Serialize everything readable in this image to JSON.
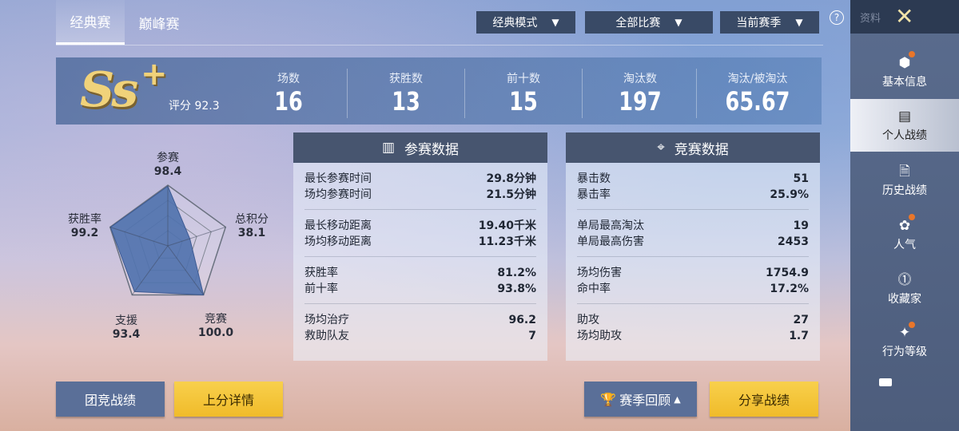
{
  "tabs": [
    {
      "label": "经典赛",
      "active": true
    },
    {
      "label": "巅峰赛",
      "active": false
    }
  ],
  "filters": [
    {
      "label": "经典模式"
    },
    {
      "label": "全部比赛"
    },
    {
      "label": "当前赛季"
    }
  ],
  "help_icon": "question-circle-icon",
  "sidebar": {
    "header": "资料",
    "close_icon": "close-x-icon",
    "items": [
      {
        "label": "基本信息",
        "icon": "profile-hex-icon",
        "badge": true
      },
      {
        "label": "个人战绩",
        "icon": "bar-chart-document-icon",
        "active": true
      },
      {
        "label": "历史战绩",
        "icon": "document-crosshair-icon"
      },
      {
        "label": "人气",
        "icon": "rose-hex-icon",
        "badge": true
      },
      {
        "label": "收藏家",
        "icon": "collector-medal-icon"
      },
      {
        "label": "行为等级",
        "icon": "winged-star-badge-icon",
        "badge": true
      }
    ],
    "more_icon": "menu-icon"
  },
  "summary": {
    "rank": "Ss",
    "rank_plus": "+",
    "score_label": "评分 92.3",
    "stats": [
      {
        "label": "场数",
        "value": "16"
      },
      {
        "label": "获胜数",
        "value": "13"
      },
      {
        "label": "前十数",
        "value": "15"
      },
      {
        "label": "淘汰数",
        "value": "197"
      },
      {
        "label": "淘汰/被淘汰",
        "value": "65.67"
      }
    ]
  },
  "radar": {
    "max": 100,
    "axes": [
      {
        "label": "参赛",
        "value": 98.4,
        "text": "98.4"
      },
      {
        "label": "总积分",
        "value": 38.1,
        "text": "38.1"
      },
      {
        "label": "竞赛",
        "value": 100.0,
        "text": "100.0"
      },
      {
        "label": "支援",
        "value": 93.4,
        "text": "93.4"
      },
      {
        "label": "获胜率",
        "value": 99.2,
        "text": "99.2"
      }
    ],
    "fill_color": "#4f71ad"
  },
  "participation": {
    "title": "参赛数据",
    "icon": "bar-chart-icon",
    "groups": [
      [
        {
          "label": "最长参赛时间",
          "value": "29.8分钟"
        },
        {
          "label": "场均参赛时间",
          "value": "21.5分钟"
        }
      ],
      [
        {
          "label": "最长移动距离",
          "value": "19.40千米"
        },
        {
          "label": "场均移动距离",
          "value": "11.23千米"
        }
      ],
      [
        {
          "label": "获胜率",
          "value": "81.2%"
        },
        {
          "label": "前十率",
          "value": "93.8%"
        }
      ],
      [
        {
          "label": "场均治疗",
          "value": "96.2"
        },
        {
          "label": "救助队友",
          "value": "7"
        }
      ]
    ]
  },
  "competition": {
    "title": "竞赛数据",
    "icon": "crosshair-icon",
    "groups": [
      [
        {
          "label": "暴击数",
          "value": "51"
        },
        {
          "label": "暴击率",
          "value": "25.9%"
        }
      ],
      [
        {
          "label": "单局最高淘汰",
          "value": "19"
        },
        {
          "label": "单局最高伤害",
          "value": "2453"
        }
      ],
      [
        {
          "label": "场均伤害",
          "value": "1754.9"
        },
        {
          "label": "命中率",
          "value": "17.2%"
        }
      ],
      [
        {
          "label": "助攻",
          "value": "27"
        },
        {
          "label": "场均助攻",
          "value": "1.7"
        }
      ]
    ]
  },
  "buttons": {
    "team": "团竞战绩",
    "rankup": "上分详情",
    "season_review": "赛季回顾",
    "share": "分享战绩"
  }
}
